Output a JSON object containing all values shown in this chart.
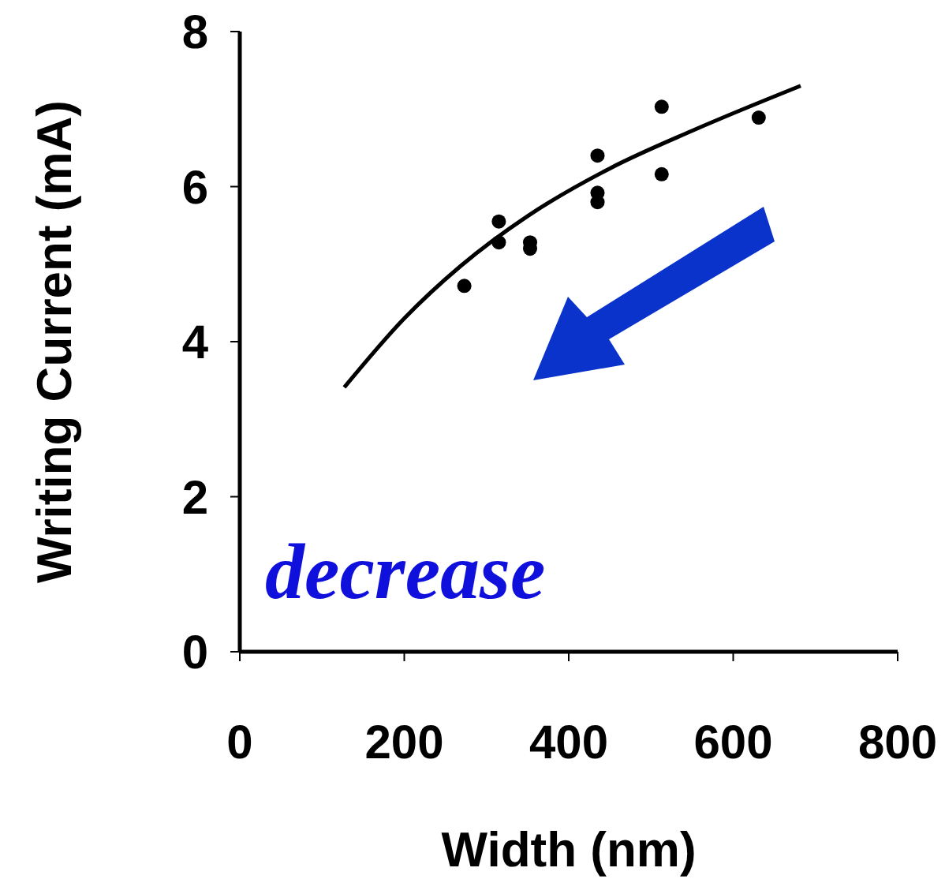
{
  "chart_data": {
    "type": "scatter",
    "xlabel": "Width (nm)",
    "ylabel": "Writing Current (mA)",
    "xlim": [
      0,
      800
    ],
    "xticks": [
      0,
      200,
      400,
      600,
      800
    ],
    "ylim": [
      0,
      8
    ],
    "yticks": [
      0,
      2,
      4,
      6,
      8
    ],
    "marker": "circle",
    "annotations": [
      "decrease"
    ],
    "series": [
      {
        "color": "#000000",
        "x": [
          273,
          315,
          315,
          353,
          353,
          435,
          435,
          435,
          513,
          513,
          631
        ],
        "values": [
          4.72,
          5.55,
          5.28,
          5.28,
          5.2,
          6.4,
          5.92,
          5.8,
          7.03,
          6.16,
          6.89
        ]
      },
      {
        "type": "line",
        "color": "#000000",
        "marker": "none",
        "x": [
          127,
          200,
          269,
          350,
          451,
          550,
          682
        ],
        "values": [
          3.41,
          4.3,
          4.98,
          5.62,
          6.24,
          6.72,
          7.3
        ]
      }
    ]
  }
}
